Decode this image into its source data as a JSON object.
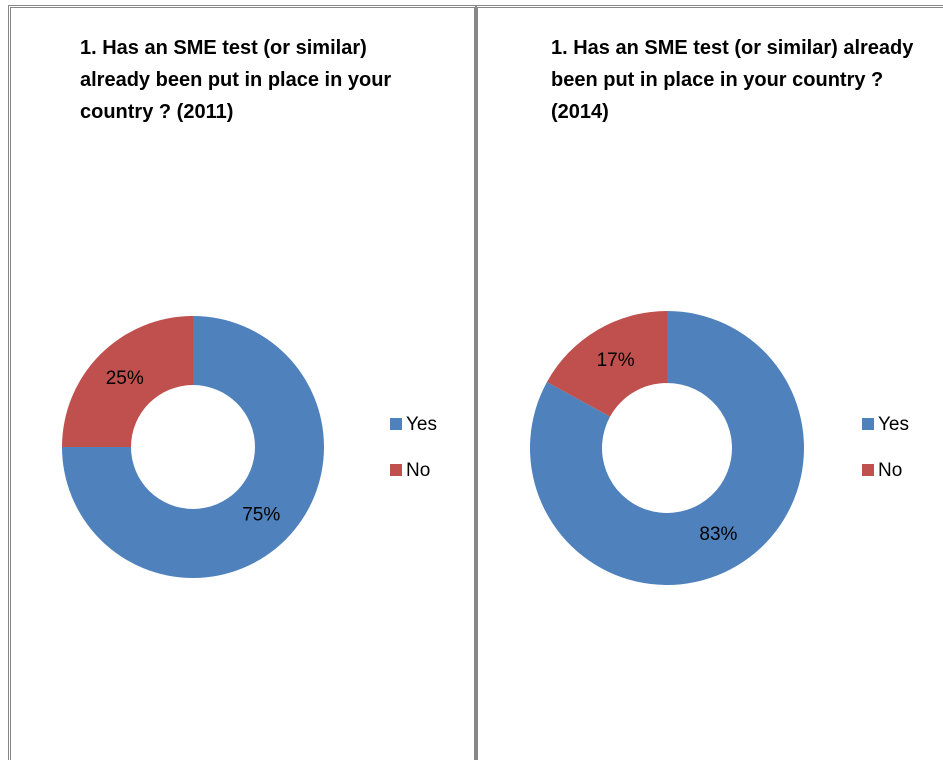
{
  "chart_data": [
    {
      "type": "donut",
      "title": "1. Has an SME test (or similar) already been put in place in your country ? (2011)",
      "categories": [
        "Yes",
        "No"
      ],
      "values": [
        75,
        25
      ],
      "value_labels": [
        "75%",
        "25%"
      ],
      "colors": [
        "#4f81bd",
        "#c0504d"
      ],
      "legend": "right"
    },
    {
      "type": "donut",
      "title": "1. Has an SME test (or similar) already been put in place in your country ? (2014)",
      "categories": [
        "Yes",
        "No"
      ],
      "values": [
        83,
        17
      ],
      "value_labels": [
        "83%",
        "17%"
      ],
      "colors": [
        "#4f81bd",
        "#c0504d"
      ],
      "legend": "right"
    }
  ]
}
